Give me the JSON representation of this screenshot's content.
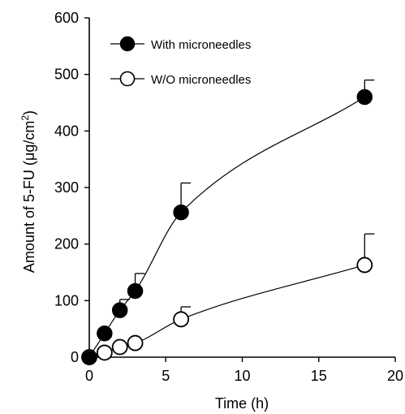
{
  "chart_data": {
    "type": "scatter",
    "xlabel": "Time (h)",
    "ylabel_main": "Amount of 5-FU (",
    "ylabel_unit": "μg/cm",
    "ylabel_sup": "2",
    "ylabel_close": ")",
    "xlim": [
      0,
      20
    ],
    "ylim": [
      0,
      600
    ],
    "xticks": [
      0,
      5,
      10,
      15,
      20
    ],
    "yticks": [
      0,
      100,
      200,
      300,
      400,
      500,
      600
    ],
    "grid": false,
    "legend_position": "top-left",
    "series": [
      {
        "name": "With microneedles",
        "marker": "filled-circle",
        "x": [
          0,
          1,
          2,
          3,
          6,
          18
        ],
        "y": [
          0,
          42,
          83,
          117,
          256,
          460
        ],
        "error_upper": [
          null,
          null,
          102,
          148,
          308,
          490
        ]
      },
      {
        "name": "W/O microneedles",
        "marker": "open-circle",
        "x": [
          0,
          1,
          2,
          3,
          6,
          18
        ],
        "y": [
          0,
          8,
          18,
          25,
          67,
          163
        ],
        "error_upper": [
          null,
          null,
          null,
          null,
          89,
          218
        ]
      }
    ]
  }
}
